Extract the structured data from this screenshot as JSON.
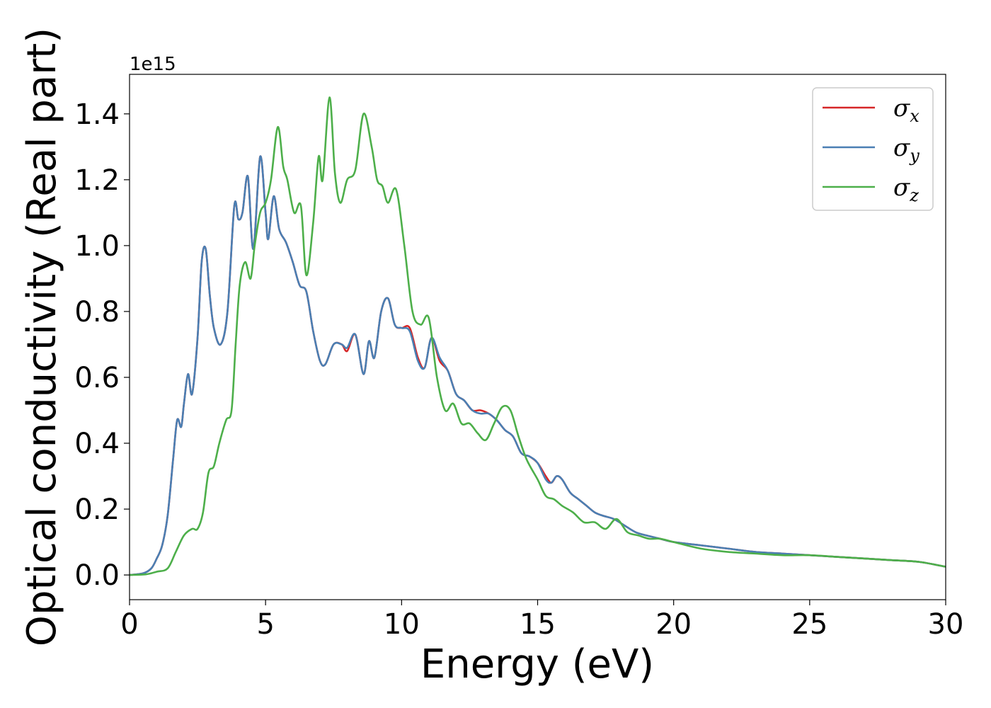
{
  "chart_data": {
    "type": "line",
    "title": "",
    "xlabel": "Energy (eV)",
    "ylabel": "Optical conductivity (Real part)",
    "y_offset_label": "1e15",
    "xlim": [
      0,
      30
    ],
    "ylim": [
      -0.075,
      1.52
    ],
    "xticks": [
      0,
      5,
      10,
      15,
      20,
      25,
      30
    ],
    "yticks": [
      0.0,
      0.2,
      0.4,
      0.6,
      0.8,
      1.0,
      1.2,
      1.4
    ],
    "ytick_labels": [
      "0.0",
      "0.2",
      "0.4",
      "0.6",
      "0.8",
      "1.0",
      "1.2",
      "1.4"
    ],
    "grid": false,
    "legend_position": "top-right",
    "series": [
      {
        "name": "σ_x",
        "legend_base": "σ",
        "legend_sub": "x",
        "color": "#d62728",
        "x": [
          0,
          0.5,
          0.8,
          1.0,
          1.2,
          1.4,
          1.6,
          1.75,
          1.9,
          2.0,
          2.15,
          2.3,
          2.5,
          2.65,
          2.8,
          2.95,
          3.1,
          3.35,
          3.6,
          3.85,
          4.0,
          4.15,
          4.35,
          4.55,
          4.8,
          5.0,
          5.1,
          5.3,
          5.5,
          5.75,
          6.0,
          6.25,
          6.5,
          6.75,
          7.0,
          7.2,
          7.5,
          7.8,
          8.0,
          8.3,
          8.6,
          8.8,
          9.0,
          9.25,
          9.5,
          9.75,
          10.0,
          10.3,
          10.6,
          10.85,
          11.1,
          11.4,
          11.7,
          12.0,
          12.3,
          12.6,
          12.9,
          13.2,
          13.5,
          13.8,
          14.1,
          14.4,
          14.7,
          15.0,
          15.3,
          15.5,
          15.7,
          15.9,
          16.2,
          16.5,
          16.8,
          17.1,
          17.4,
          17.8,
          18.2,
          18.6,
          19.0,
          19.5,
          20.0,
          21.0,
          22.0,
          23.0,
          24.0,
          25.0,
          26.0,
          27.0,
          28.0,
          29.0,
          30.0
        ],
        "y": [
          0.0,
          0.005,
          0.02,
          0.05,
          0.09,
          0.18,
          0.35,
          0.47,
          0.45,
          0.52,
          0.61,
          0.55,
          0.72,
          0.95,
          0.99,
          0.85,
          0.75,
          0.7,
          0.8,
          1.12,
          1.08,
          1.1,
          1.21,
          0.99,
          1.27,
          1.1,
          1.02,
          1.15,
          1.05,
          1.01,
          0.95,
          0.88,
          0.86,
          0.74,
          0.65,
          0.64,
          0.7,
          0.7,
          0.68,
          0.73,
          0.61,
          0.71,
          0.66,
          0.8,
          0.84,
          0.76,
          0.75,
          0.75,
          0.66,
          0.63,
          0.72,
          0.65,
          0.62,
          0.55,
          0.53,
          0.5,
          0.5,
          0.49,
          0.47,
          0.44,
          0.42,
          0.37,
          0.36,
          0.34,
          0.3,
          0.28,
          0.3,
          0.29,
          0.25,
          0.23,
          0.21,
          0.19,
          0.18,
          0.17,
          0.15,
          0.13,
          0.12,
          0.11,
          0.1,
          0.09,
          0.08,
          0.07,
          0.065,
          0.06,
          0.055,
          0.05,
          0.045,
          0.04,
          0.025
        ]
      },
      {
        "name": "σ_y",
        "legend_base": "σ",
        "legend_sub": "y",
        "color": "#4a7fb3",
        "x": [
          0,
          0.5,
          0.8,
          1.0,
          1.2,
          1.4,
          1.6,
          1.75,
          1.9,
          2.0,
          2.15,
          2.3,
          2.5,
          2.65,
          2.8,
          2.95,
          3.1,
          3.35,
          3.6,
          3.85,
          4.0,
          4.15,
          4.35,
          4.55,
          4.8,
          5.0,
          5.1,
          5.3,
          5.5,
          5.75,
          6.0,
          6.25,
          6.5,
          6.75,
          7.0,
          7.2,
          7.5,
          7.8,
          8.0,
          8.3,
          8.6,
          8.8,
          9.0,
          9.25,
          9.5,
          9.75,
          10.0,
          10.3,
          10.6,
          10.85,
          11.1,
          11.4,
          11.7,
          12.0,
          12.3,
          12.6,
          12.9,
          13.2,
          13.5,
          13.8,
          14.1,
          14.4,
          14.7,
          15.0,
          15.3,
          15.5,
          15.7,
          15.9,
          16.2,
          16.5,
          16.8,
          17.1,
          17.4,
          17.8,
          18.2,
          18.6,
          19.0,
          19.5,
          20.0,
          21.0,
          22.0,
          23.0,
          24.0,
          25.0,
          26.0,
          27.0,
          28.0,
          29.0,
          30.0
        ],
        "y": [
          0.0,
          0.005,
          0.02,
          0.05,
          0.09,
          0.18,
          0.35,
          0.47,
          0.45,
          0.52,
          0.61,
          0.55,
          0.72,
          0.95,
          0.99,
          0.85,
          0.75,
          0.7,
          0.8,
          1.12,
          1.08,
          1.1,
          1.21,
          0.99,
          1.27,
          1.1,
          1.02,
          1.15,
          1.05,
          1.01,
          0.95,
          0.88,
          0.86,
          0.74,
          0.65,
          0.64,
          0.7,
          0.7,
          0.69,
          0.73,
          0.61,
          0.71,
          0.66,
          0.8,
          0.84,
          0.76,
          0.75,
          0.74,
          0.65,
          0.63,
          0.72,
          0.66,
          0.62,
          0.55,
          0.53,
          0.5,
          0.49,
          0.49,
          0.47,
          0.44,
          0.42,
          0.37,
          0.36,
          0.34,
          0.29,
          0.28,
          0.3,
          0.29,
          0.25,
          0.23,
          0.21,
          0.19,
          0.18,
          0.17,
          0.15,
          0.13,
          0.12,
          0.11,
          0.1,
          0.09,
          0.08,
          0.07,
          0.065,
          0.06,
          0.055,
          0.05,
          0.045,
          0.04,
          0.025
        ]
      },
      {
        "name": "σ_z",
        "legend_base": "σ",
        "legend_sub": "z",
        "color": "#4daf4a",
        "x": [
          0,
          0.6,
          1.0,
          1.4,
          1.7,
          2.0,
          2.3,
          2.5,
          2.7,
          2.9,
          3.1,
          3.3,
          3.55,
          3.75,
          3.9,
          4.05,
          4.25,
          4.45,
          4.6,
          4.8,
          5.0,
          5.2,
          5.45,
          5.65,
          5.8,
          6.05,
          6.3,
          6.5,
          6.75,
          6.95,
          7.1,
          7.35,
          7.55,
          7.75,
          8.0,
          8.3,
          8.6,
          8.9,
          9.1,
          9.3,
          9.5,
          9.8,
          10.1,
          10.4,
          10.7,
          11.0,
          11.3,
          11.6,
          11.9,
          12.2,
          12.5,
          12.8,
          13.1,
          13.4,
          13.7,
          14.0,
          14.3,
          14.6,
          15.0,
          15.3,
          15.6,
          15.9,
          16.3,
          16.7,
          17.1,
          17.5,
          17.9,
          18.3,
          18.7,
          19.1,
          19.5,
          20.0,
          21.0,
          22.0,
          23.0,
          24.0,
          25.0,
          26.0,
          27.0,
          28.0,
          29.0,
          30.0
        ],
        "y": [
          0.0,
          0.002,
          0.01,
          0.02,
          0.07,
          0.12,
          0.14,
          0.14,
          0.19,
          0.31,
          0.33,
          0.4,
          0.47,
          0.5,
          0.7,
          0.88,
          0.95,
          0.9,
          1.0,
          1.1,
          1.13,
          1.2,
          1.36,
          1.24,
          1.2,
          1.1,
          1.12,
          0.91,
          1.07,
          1.27,
          1.2,
          1.45,
          1.22,
          1.13,
          1.2,
          1.23,
          1.4,
          1.3,
          1.2,
          1.18,
          1.13,
          1.17,
          1.0,
          0.8,
          0.76,
          0.78,
          0.6,
          0.5,
          0.52,
          0.46,
          0.46,
          0.43,
          0.41,
          0.46,
          0.51,
          0.5,
          0.42,
          0.35,
          0.29,
          0.24,
          0.23,
          0.21,
          0.19,
          0.16,
          0.16,
          0.14,
          0.17,
          0.13,
          0.12,
          0.11,
          0.11,
          0.1,
          0.08,
          0.07,
          0.065,
          0.06,
          0.06,
          0.055,
          0.05,
          0.045,
          0.04,
          0.025
        ]
      }
    ]
  }
}
